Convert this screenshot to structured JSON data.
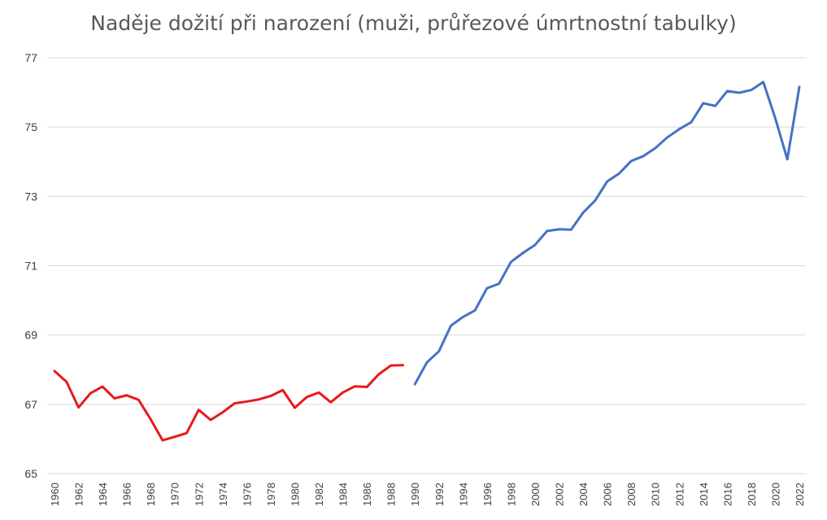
{
  "chart_data": {
    "type": "line",
    "title": "Naděje dožití při narození (muži, průřezové úmrtnostní tabulky)",
    "xlabel": "",
    "ylabel": "",
    "ylim": [
      65,
      77
    ],
    "yticks": [
      65,
      67,
      69,
      71,
      73,
      75,
      77
    ],
    "xlim": [
      1960,
      2022
    ],
    "xticks": [
      1960,
      1962,
      1964,
      1966,
      1968,
      1970,
      1972,
      1974,
      1976,
      1978,
      1980,
      1982,
      1984,
      1986,
      1988,
      1990,
      1992,
      1994,
      1996,
      1998,
      2000,
      2002,
      2004,
      2006,
      2008,
      2010,
      2012,
      2014,
      2016,
      2018,
      2020,
      2022
    ],
    "grid": "horizontal",
    "legend": "none",
    "series": [
      {
        "color": "#e8191b",
        "x": [
          1960,
          1961,
          1962,
          1963,
          1964,
          1965,
          1966,
          1967,
          1968,
          1969,
          1970,
          1971,
          1972,
          1973,
          1974,
          1975,
          1976,
          1977,
          1978,
          1979,
          1980,
          1981,
          1982,
          1983,
          1984,
          1985,
          1986,
          1987,
          1988,
          1989
        ],
        "y": [
          67.96,
          67.65,
          66.91,
          67.32,
          67.51,
          67.17,
          67.26,
          67.13,
          66.57,
          65.96,
          66.06,
          66.17,
          66.84,
          66.55,
          66.77,
          67.03,
          67.08,
          67.14,
          67.24,
          67.41,
          66.9,
          67.21,
          67.34,
          67.06,
          67.34,
          67.52,
          67.5,
          67.87,
          68.12,
          68.13
        ]
      },
      {
        "color": "#4472c4",
        "x": [
          1990,
          1991,
          1992,
          1993,
          1994,
          1995,
          1996,
          1997,
          1998,
          1999,
          2000,
          2001,
          2002,
          2003,
          2004,
          2005,
          2006,
          2007,
          2008,
          2009,
          2010,
          2011,
          2012,
          2013,
          2014,
          2015,
          2016,
          2017,
          2018,
          2019,
          2020,
          2021,
          2022
        ],
        "y": [
          67.58,
          68.21,
          68.53,
          69.27,
          69.52,
          69.71,
          70.35,
          70.48,
          71.11,
          71.37,
          71.6,
          72.0,
          72.05,
          72.04,
          72.53,
          72.88,
          73.43,
          73.66,
          74.02,
          74.16,
          74.39,
          74.7,
          74.94,
          75.14,
          75.69,
          75.61,
          76.04,
          75.99,
          76.07,
          76.3,
          75.25,
          74.07,
          76.16
        ]
      }
    ]
  }
}
